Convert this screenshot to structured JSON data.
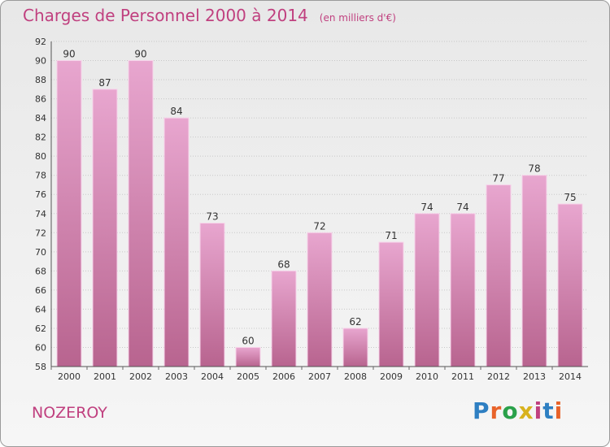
{
  "header": {
    "title": "Charges de Personnel 2000 à 2014",
    "subtitle": "(en milliers d'€)"
  },
  "footer": {
    "place": "NOZEROY",
    "logo_text": "Proxiti",
    "logo_colors": [
      "#2e7fc2",
      "#e8632a",
      "#2aa14a",
      "#d8b21e",
      "#c0407f",
      "#2e7fc2",
      "#e8632a"
    ]
  },
  "colors": {
    "bar_top": "#e8a6cf",
    "bar_bottom": "#b8648f",
    "bar_edge": "#f7d3ea",
    "accent": "#c0407f"
  },
  "chart_data": {
    "type": "bar",
    "title": "Charges de Personnel 2000 à 2014",
    "subtitle": "(en milliers d'€)",
    "xlabel": "",
    "ylabel": "",
    "categories": [
      "2000",
      "2001",
      "2002",
      "2003",
      "2004",
      "2005",
      "2006",
      "2007",
      "2008",
      "2009",
      "2010",
      "2011",
      "2012",
      "2013",
      "2014"
    ],
    "values": [
      90,
      87,
      90,
      84,
      73,
      60,
      68,
      72,
      62,
      71,
      74,
      74,
      77,
      78,
      75
    ],
    "ylim": [
      58,
      92
    ],
    "yticks": [
      58,
      60,
      62,
      64,
      66,
      68,
      70,
      72,
      74,
      76,
      78,
      80,
      82,
      84,
      86,
      88,
      90,
      92
    ],
    "grid": true,
    "legend": "none"
  }
}
